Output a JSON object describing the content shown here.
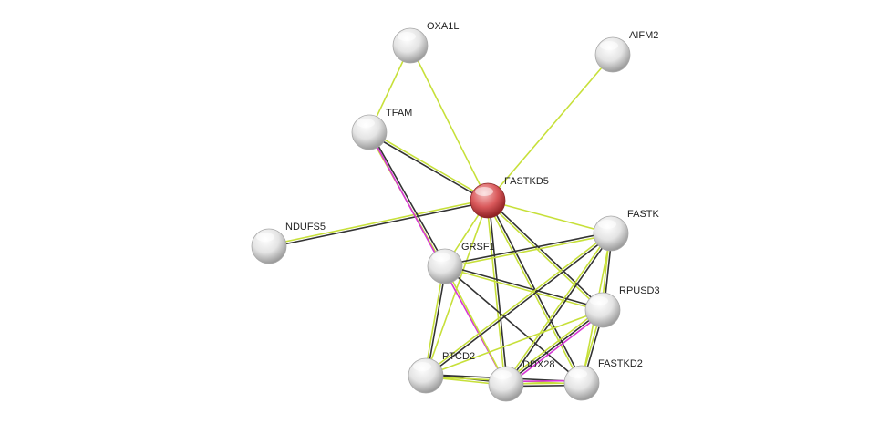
{
  "nodes": [
    {
      "id": "OXA1L",
      "label": "OXA1L",
      "query": false
    },
    {
      "id": "AIFM2",
      "label": "AIFM2",
      "query": false
    },
    {
      "id": "TFAM",
      "label": "TFAM",
      "query": false
    },
    {
      "id": "FASTKD5",
      "label": "FASTKD5",
      "query": true
    },
    {
      "id": "FASTK",
      "label": "FASTK",
      "query": false
    },
    {
      "id": "NDUFS5",
      "label": "NDUFS5",
      "query": false
    },
    {
      "id": "GRSF1",
      "label": "GRSF1",
      "query": false
    },
    {
      "id": "RPUSD3",
      "label": "RPUSD3",
      "query": false
    },
    {
      "id": "PTCD2",
      "label": "PTCD2",
      "query": false
    },
    {
      "id": "DDX28",
      "label": "DDX28",
      "query": false
    },
    {
      "id": "FASTKD2",
      "label": "FASTKD2",
      "query": false
    }
  ],
  "edge_colors": {
    "coexpression": "#333333",
    "textmining": "#c7e03a",
    "experiments": "#d636d6"
  },
  "node_colors": {
    "query": "#d9474a",
    "default": "#e0e0e0"
  },
  "edges": [
    {
      "a": "FASTKD5",
      "b": "OXA1L",
      "types": [
        "textmining"
      ]
    },
    {
      "a": "FASTKD5",
      "b": "AIFM2",
      "types": [
        "textmining"
      ]
    },
    {
      "a": "FASTKD5",
      "b": "TFAM",
      "types": [
        "coexpression",
        "textmining"
      ]
    },
    {
      "a": "OXA1L",
      "b": "TFAM",
      "types": [
        "textmining"
      ]
    },
    {
      "a": "FASTKD5",
      "b": "NDUFS5",
      "types": [
        "coexpression",
        "textmining"
      ]
    },
    {
      "a": "FASTKD5",
      "b": "FASTK",
      "types": [
        "textmining"
      ]
    },
    {
      "a": "FASTKD5",
      "b": "GRSF1",
      "types": [
        "textmining"
      ]
    },
    {
      "a": "FASTKD5",
      "b": "PTCD2",
      "types": [
        "textmining"
      ]
    },
    {
      "a": "FASTKD5",
      "b": "DDX28",
      "types": [
        "coexpression",
        "textmining"
      ]
    },
    {
      "a": "FASTKD5",
      "b": "RPUSD3",
      "types": [
        "coexpression",
        "textmining"
      ]
    },
    {
      "a": "FASTKD5",
      "b": "FASTKD2",
      "types": [
        "coexpression",
        "textmining"
      ]
    },
    {
      "a": "TFAM",
      "b": "GRSF1",
      "types": [
        "coexpression",
        "textmining"
      ]
    },
    {
      "a": "TFAM",
      "b": "DDX28",
      "types": [
        "experiments"
      ]
    },
    {
      "a": "GRSF1",
      "b": "FASTK",
      "types": [
        "coexpression",
        "textmining"
      ]
    },
    {
      "a": "GRSF1",
      "b": "RPUSD3",
      "types": [
        "coexpression",
        "textmining"
      ]
    },
    {
      "a": "GRSF1",
      "b": "FASTKD2",
      "types": [
        "coexpression"
      ]
    },
    {
      "a": "GRSF1",
      "b": "PTCD2",
      "types": [
        "coexpression",
        "textmining"
      ]
    },
    {
      "a": "GRSF1",
      "b": "DDX28",
      "types": [
        "textmining"
      ]
    },
    {
      "a": "FASTK",
      "b": "PTCD2",
      "types": [
        "coexpression",
        "textmining"
      ]
    },
    {
      "a": "FASTK",
      "b": "DDX28",
      "types": [
        "coexpression",
        "textmining"
      ]
    },
    {
      "a": "FASTK",
      "b": "RPUSD3",
      "types": [
        "coexpression",
        "textmining"
      ]
    },
    {
      "a": "FASTK",
      "b": "FASTKD2",
      "types": [
        "textmining"
      ]
    },
    {
      "a": "RPUSD3",
      "b": "PTCD2",
      "types": [
        "textmining"
      ]
    },
    {
      "a": "RPUSD3",
      "b": "DDX28",
      "types": [
        "experiments",
        "coexpression",
        "textmining"
      ]
    },
    {
      "a": "RPUSD3",
      "b": "FASTKD2",
      "types": [
        "coexpression",
        "textmining"
      ]
    },
    {
      "a": "PTCD2",
      "b": "DDX28",
      "types": [
        "coexpression",
        "textmining"
      ]
    },
    {
      "a": "PTCD2",
      "b": "FASTKD2",
      "types": [
        "coexpression",
        "textmining"
      ]
    },
    {
      "a": "DDX28",
      "b": "FASTKD2",
      "types": [
        "experiments",
        "textmining",
        "coexpression"
      ]
    }
  ]
}
